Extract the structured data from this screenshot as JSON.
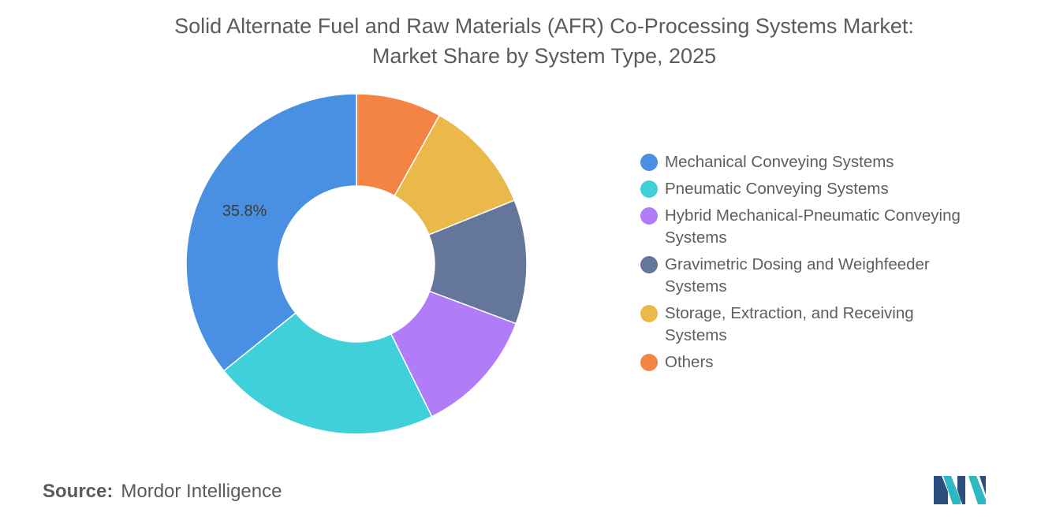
{
  "chart_data": {
    "type": "pie",
    "title": "Solid Alternate Fuel and Raw Materials (AFR) Co-Processing Systems Market:",
    "subtitle": "Market Share by System Type, 2025",
    "categories": [
      "Mechanical Conveying Systems",
      "Pneumatic Conveying Systems",
      "Hybrid Mechanical-Pneumatic Conveying Systems",
      "Gravimetric Dosing and Weighfeeder Systems",
      "Storage, Extraction, and Receiving Systems",
      "Others"
    ],
    "legend_lines": [
      [
        "Mechanical Conveying Systems"
      ],
      [
        "Pneumatic Conveying Systems"
      ],
      [
        "Hybrid Mechanical-Pneumatic Conveying",
        "Systems"
      ],
      [
        "Gravimetric Dosing and Weighfeeder",
        "Systems"
      ],
      [
        "Storage, Extraction, and Receiving",
        "Systems"
      ],
      [
        "Others"
      ]
    ],
    "values": [
      35.8,
      21.5,
      12.0,
      11.8,
      10.8,
      8.1
    ],
    "colors": [
      "#4a90e2",
      "#3fd0d9",
      "#b07cf7",
      "#64779a",
      "#ebb94a",
      "#f38443"
    ],
    "data_labels": [
      "35.8%",
      "",
      "",
      "",
      "",
      ""
    ],
    "legend_position": "right"
  },
  "source": {
    "label": "Source:",
    "value": "Mordor Intelligence"
  }
}
